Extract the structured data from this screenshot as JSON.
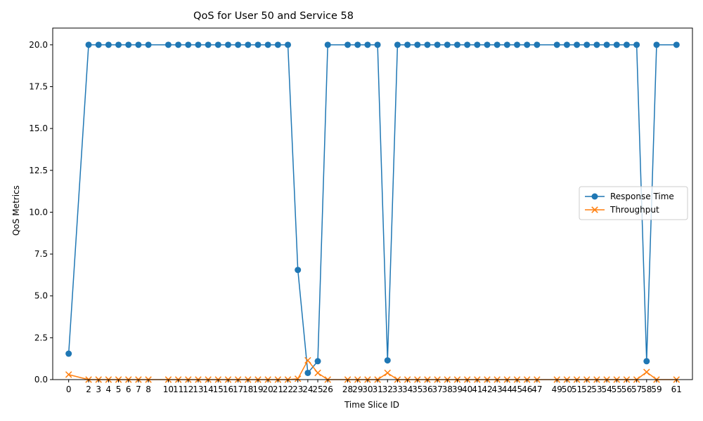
{
  "chart_data": {
    "type": "line",
    "title": "QoS for User 50 and Service 58",
    "xlabel": "Time Slice ID",
    "ylabel": "QoS Metrics",
    "ylim": [
      0,
      21
    ],
    "xlim": [
      -1.6,
      62.6
    ],
    "yticks": [
      0.0,
      2.5,
      5.0,
      7.5,
      10.0,
      12.5,
      15.0,
      17.5,
      20.0
    ],
    "ytick_labels": [
      "0.0",
      "2.5",
      "5.0",
      "7.5",
      "10.0",
      "12.5",
      "15.0",
      "17.5",
      "20.0"
    ],
    "x": [
      0,
      2,
      3,
      4,
      5,
      6,
      7,
      8,
      10,
      11,
      12,
      13,
      14,
      15,
      16,
      17,
      18,
      19,
      20,
      21,
      22,
      23,
      24,
      25,
      26,
      28,
      29,
      30,
      31,
      32,
      33,
      34,
      35,
      36,
      37,
      38,
      39,
      40,
      41,
      42,
      43,
      44,
      45,
      46,
      47,
      49,
      50,
      51,
      52,
      53,
      54,
      55,
      56,
      57,
      58,
      59,
      61
    ],
    "legend_position": "center-right",
    "grid": false,
    "series": [
      {
        "name": "Response Time",
        "color": "#1f77b4",
        "marker": "circle",
        "values": [
          1.55,
          20,
          20,
          20,
          20,
          20,
          20,
          20,
          20,
          20,
          20,
          20,
          20,
          20,
          20,
          20,
          20,
          20,
          20,
          20,
          20,
          6.55,
          0.4,
          1.1,
          20,
          20,
          20,
          20,
          20,
          1.15,
          20,
          20,
          20,
          20,
          20,
          20,
          20,
          20,
          20,
          20,
          20,
          20,
          20,
          20,
          20,
          20,
          20,
          20,
          20,
          20,
          20,
          20,
          20,
          20,
          1.1,
          20,
          20
        ]
      },
      {
        "name": "Throughput",
        "color": "#ff7f0e",
        "marker": "x",
        "values": [
          0.3,
          0,
          0,
          0,
          0,
          0,
          0,
          0,
          0,
          0,
          0,
          0,
          0,
          0,
          0,
          0,
          0,
          0,
          0,
          0,
          0,
          0.05,
          1.15,
          0.4,
          0,
          0,
          0,
          0,
          0,
          0.4,
          0,
          0,
          0,
          0,
          0,
          0,
          0,
          0,
          0,
          0,
          0,
          0,
          0,
          0,
          0,
          0,
          0,
          0,
          0,
          0,
          0,
          0,
          0,
          0,
          0.45,
          0,
          0
        ]
      }
    ]
  }
}
